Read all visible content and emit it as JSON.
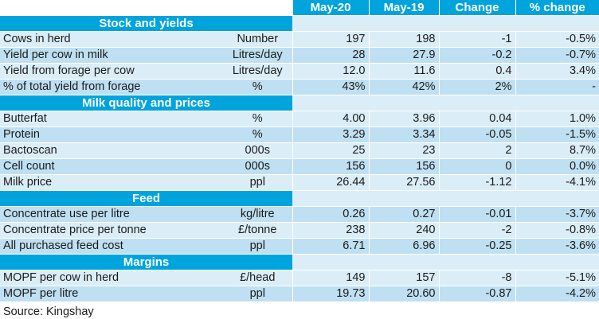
{
  "columns": [
    "May-20",
    "May-19",
    "Change",
    "% change"
  ],
  "sections": [
    {
      "title": "Stock and yields",
      "rows": [
        {
          "label": "Cows in herd",
          "unit": "Number",
          "v1": "197",
          "v2": "198",
          "change": "-1",
          "pct": "-0.5%"
        },
        {
          "label": "Yield per cow in milk",
          "unit": "Litres/day",
          "v1": "28",
          "v2": "27.9",
          "change": "-0.2",
          "pct": "-0.7%"
        },
        {
          "label": "Yield from forage per cow",
          "unit": "Litres/day",
          "v1": "12.0",
          "v2": "11.6",
          "change": "0.4",
          "pct": "3.4%"
        },
        {
          "label": "% of total yield from forage",
          "unit": "%",
          "v1": "43%",
          "v2": "42%",
          "change": "2%",
          "pct": "-"
        }
      ]
    },
    {
      "title": "Milk quality and prices",
      "rows": [
        {
          "label": "Butterfat",
          "unit": "%",
          "v1": "4.00",
          "v2": "3.96",
          "change": "0.04",
          "pct": "1.0%"
        },
        {
          "label": "Protein",
          "unit": "%",
          "v1": "3.29",
          "v2": "3.34",
          "change": "-0.05",
          "pct": "-1.5%"
        },
        {
          "label": "Bactoscan",
          "unit": "000s",
          "v1": "25",
          "v2": "23",
          "change": "2",
          "pct": "8.7%"
        },
        {
          "label": "Cell count",
          "unit": "000s",
          "v1": "156",
          "v2": "156",
          "change": "0",
          "pct": "0.0%"
        },
        {
          "label": "Milk price",
          "unit": "ppl",
          "v1": "26.44",
          "v2": "27.56",
          "change": "-1.12",
          "pct": "-4.1%"
        }
      ]
    },
    {
      "title": "Feed",
      "rows": [
        {
          "label": "Concentrate use per litre",
          "unit": "kg/litre",
          "v1": "0.26",
          "v2": "0.27",
          "change": "-0.01",
          "pct": "-3.7%"
        },
        {
          "label": "Concentrate price per tonne",
          "unit": "£/tonne",
          "v1": "238",
          "v2": "240",
          "change": "-2",
          "pct": "-0.8%"
        },
        {
          "label": "All purchased feed cost",
          "unit": "ppl",
          "v1": "6.71",
          "v2": "6.96",
          "change": "-0.25",
          "pct": "-3.6%"
        }
      ]
    },
    {
      "title": "Margins",
      "rows": [
        {
          "label": "MOPF per cow in herd",
          "unit": "£/head",
          "v1": "149",
          "v2": "157",
          "change": "-8",
          "pct": "-5.1%"
        },
        {
          "label": "MOPF per litre",
          "unit": "ppl",
          "v1": "19.73",
          "v2": "20.60",
          "change": "-0.87",
          "pct": "-4.2%"
        }
      ]
    }
  ],
  "source": "Source: Kingshay",
  "colors": {
    "header": "#00a4dc",
    "row_light": "#dbeef8",
    "row_dark": "#bfe0f2"
  }
}
